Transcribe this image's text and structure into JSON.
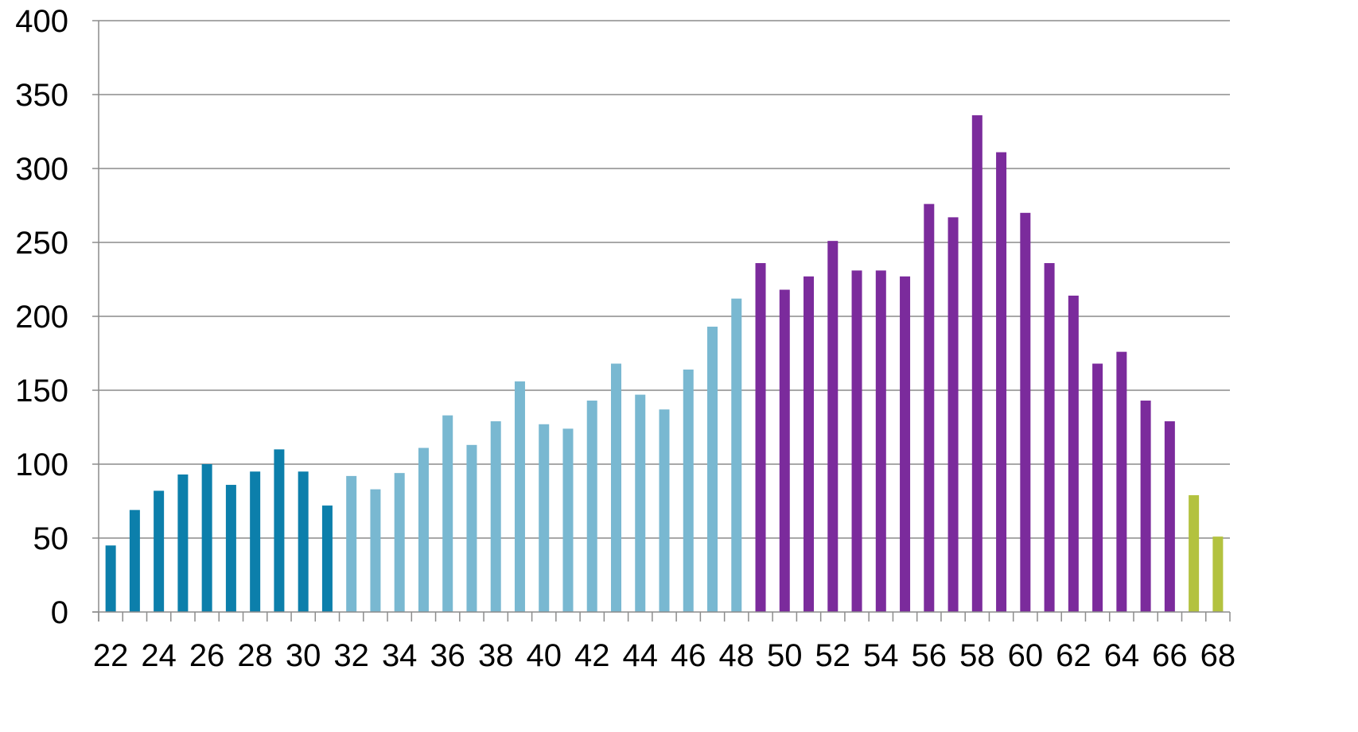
{
  "chart_data": {
    "type": "bar",
    "title": "",
    "xlabel": "",
    "ylabel": "",
    "ylim": [
      0,
      400
    ],
    "yticks": [
      "0",
      "50",
      "100",
      "150",
      "200",
      "250",
      "300",
      "350",
      "400"
    ],
    "grid": "horizontal",
    "legend": "none",
    "categories": [
      "22",
      "23",
      "24",
      "25",
      "26",
      "27",
      "28",
      "29",
      "30",
      "31",
      "32",
      "33",
      "34",
      "35",
      "36",
      "37",
      "38",
      "39",
      "40",
      "41",
      "42",
      "43",
      "44",
      "45",
      "46",
      "47",
      "48",
      "49",
      "50",
      "51",
      "52",
      "53",
      "54",
      "55",
      "56",
      "57",
      "58",
      "59",
      "60",
      "61",
      "62",
      "63",
      "64",
      "65",
      "66",
      "67",
      "68"
    ],
    "x_tick_labels": [
      "22",
      "24",
      "26",
      "28",
      "30",
      "32",
      "34",
      "36",
      "38",
      "40",
      "42",
      "44",
      "46",
      "48",
      "50",
      "52",
      "54",
      "56",
      "58",
      "60",
      "62",
      "64",
      "66",
      "68"
    ],
    "values": [
      45,
      69,
      82,
      93,
      100,
      86,
      95,
      110,
      95,
      72,
      92,
      83,
      94,
      111,
      133,
      113,
      129,
      156,
      127,
      124,
      143,
      168,
      147,
      137,
      164,
      193,
      212,
      236,
      218,
      227,
      251,
      231,
      231,
      227,
      276,
      267,
      336,
      311,
      270,
      236,
      214,
      168,
      176,
      143,
      129,
      79,
      51
    ],
    "bar_colors": [
      "#0c7fab",
      "#0c7fab",
      "#0c7fab",
      "#0c7fab",
      "#0c7fab",
      "#0c7fab",
      "#0c7fab",
      "#0c7fab",
      "#0c7fab",
      "#0c7fab",
      "#79b8d1",
      "#79b8d1",
      "#79b8d1",
      "#79b8d1",
      "#79b8d1",
      "#79b8d1",
      "#79b8d1",
      "#79b8d1",
      "#79b8d1",
      "#79b8d1",
      "#79b8d1",
      "#79b8d1",
      "#79b8d1",
      "#79b8d1",
      "#79b8d1",
      "#79b8d1",
      "#79b8d1",
      "#7b2b9c",
      "#7b2b9c",
      "#7b2b9c",
      "#7b2b9c",
      "#7b2b9c",
      "#7b2b9c",
      "#7b2b9c",
      "#7b2b9c",
      "#7b2b9c",
      "#7b2b9c",
      "#7b2b9c",
      "#7b2b9c",
      "#7b2b9c",
      "#7b2b9c",
      "#7b2b9c",
      "#7b2b9c",
      "#7b2b9c",
      "#7b2b9c",
      "#b3c23f",
      "#b3c23f"
    ],
    "colors": {
      "gridline": "#8c8c8c",
      "axis": "#8c8c8c",
      "text": "#000000"
    }
  }
}
